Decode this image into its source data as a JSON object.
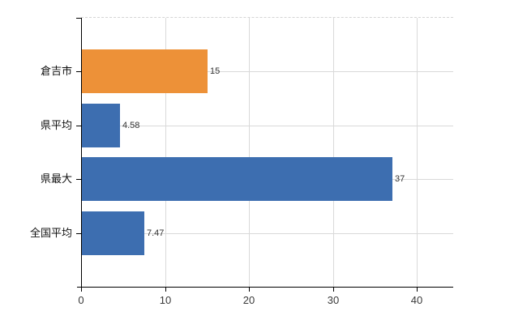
{
  "chart_data": {
    "type": "bar",
    "orientation": "horizontal",
    "title": "",
    "xlabel": "",
    "ylabel": "",
    "categories": [
      "倉吉市",
      "県平均",
      "県最大",
      "全国平均"
    ],
    "values": [
      15,
      4.58,
      37,
      7.47
    ],
    "value_labels": [
      "15",
      "4.58",
      "37",
      "7.47"
    ],
    "bar_colors": [
      "#ED9138",
      "#3D6EB0",
      "#3D6EB0",
      "#3D6EB0"
    ],
    "x_ticks": [
      0,
      10,
      20,
      30,
      40
    ],
    "x_tick_labels": [
      "0",
      "10",
      "20",
      "30",
      "40"
    ],
    "xlim": [
      0,
      44.3
    ],
    "grid": true,
    "legend": false,
    "colors": {
      "orange_series": "#ED9138",
      "blue_series": "#3D6EB0",
      "gridline": "#d9d9d9",
      "axis": "#000000",
      "value_label": "#333333",
      "tick_label": "#3a3a3a",
      "category_label": "#111111",
      "background": "#ffffff"
    }
  }
}
